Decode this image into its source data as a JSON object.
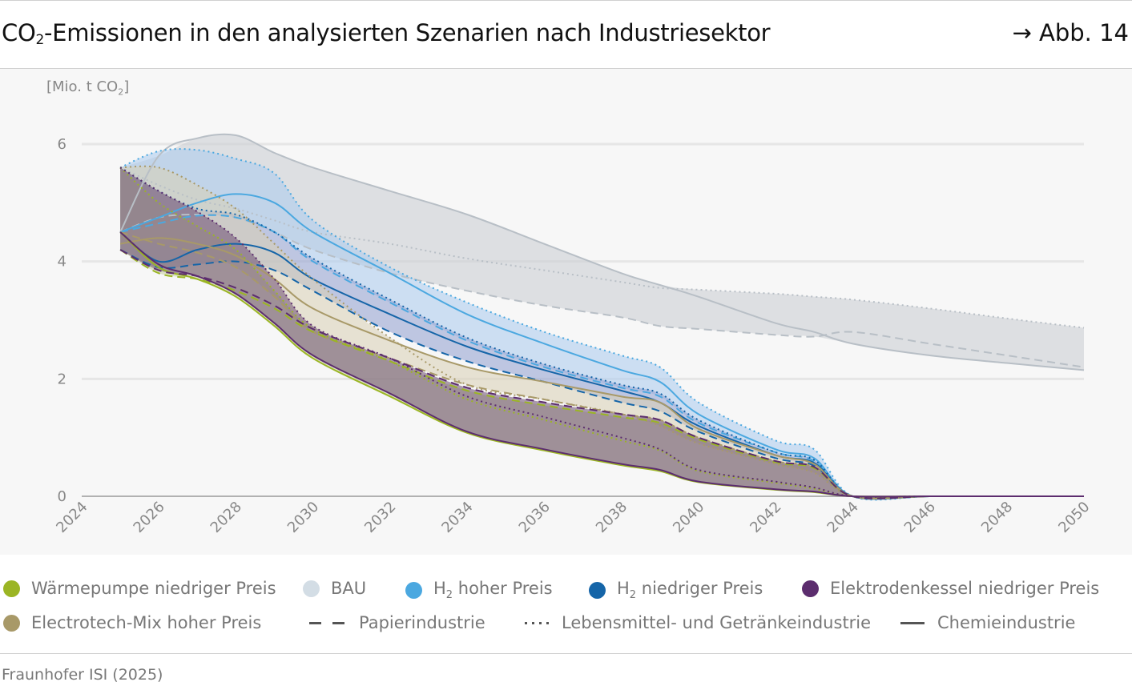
{
  "header": {
    "title_prefix": "CO",
    "title_sub": "2",
    "title_rest": "-Emissionen in den analysierten Szenarien nach Industriesektor",
    "figure_ref": "→ Abb. 14"
  },
  "footer": {
    "source": "Fraunhofer ISI (2025)"
  },
  "chart_data": {
    "type": "line",
    "ylabel_prefix": "[Mio. t CO",
    "ylabel_sub": "2",
    "ylabel_suffix": "]",
    "xlim": [
      2024,
      2050
    ],
    "ylim": [
      0,
      6
    ],
    "x_ticks": [
      "2024",
      "2026",
      "2028",
      "2030",
      "2032",
      "2034",
      "2036",
      "2038",
      "2040",
      "2042",
      "2044",
      "2046",
      "2048",
      "2050"
    ],
    "y_ticks": [
      "0",
      "2",
      "4",
      "6"
    ],
    "grid": true,
    "legend_position": "bottom",
    "x": [
      2025,
      2026,
      2027,
      2028,
      2029,
      2030,
      2032,
      2034,
      2036,
      2038,
      2039,
      2040,
      2042,
      2043,
      2044,
      2046,
      2048,
      2050
    ],
    "scenarios": [
      {
        "name": "BAU",
        "color": "#b8bfc6",
        "fill": "#c9ccd2",
        "sectors": {
          "Chemieindustrie": [
            4.5,
            5.8,
            6.1,
            6.15,
            5.85,
            5.6,
            5.2,
            4.8,
            4.3,
            3.8,
            3.6,
            3.4,
            2.95,
            2.8,
            2.6,
            2.4,
            2.27,
            2.15
          ],
          "Lebensmittel- und Getränkeindustrie": [
            5.6,
            5.3,
            5.05,
            4.9,
            4.7,
            4.5,
            4.3,
            4.05,
            3.85,
            3.65,
            3.55,
            3.52,
            3.45,
            3.4,
            3.35,
            3.2,
            3.03,
            2.87
          ],
          "Papierindustrie": [
            4.5,
            4.75,
            4.8,
            4.75,
            4.5,
            4.2,
            3.8,
            3.5,
            3.25,
            3.05,
            2.9,
            2.85,
            2.75,
            2.72,
            2.8,
            2.6,
            2.4,
            2.2
          ]
        }
      },
      {
        "name": "H2 hoher Preis",
        "color": "#4ba8e0",
        "fill": "#a9cbee",
        "sectors": {
          "Chemieindustrie": [
            4.5,
            4.75,
            5.0,
            5.15,
            5.0,
            4.5,
            3.8,
            3.1,
            2.6,
            2.15,
            1.95,
            1.4,
            0.8,
            0.65,
            0,
            0,
            0,
            0
          ],
          "Lebensmittel- und Getränkeindustrie": [
            5.6,
            5.88,
            5.9,
            5.75,
            5.5,
            4.7,
            3.9,
            3.3,
            2.8,
            2.4,
            2.2,
            1.6,
            0.95,
            0.8,
            0,
            0,
            0,
            0
          ],
          "Papierindustrie": [
            4.5,
            4.65,
            4.78,
            4.75,
            4.5,
            4.0,
            3.3,
            2.65,
            2.2,
            1.85,
            1.7,
            1.25,
            0.75,
            0.6,
            0,
            0,
            0,
            0
          ]
        }
      },
      {
        "name": "H2 niedriger Preis",
        "color": "#1565a8",
        "fill": "#8f9fd0",
        "sectors": {
          "Chemieindustrie": [
            4.5,
            4.0,
            4.2,
            4.3,
            4.15,
            3.7,
            3.1,
            2.55,
            2.15,
            1.8,
            1.6,
            1.2,
            0.7,
            0.57,
            0,
            0,
            0,
            0
          ],
          "Lebensmittel- und Getränkeindustrie": [
            5.6,
            5.2,
            4.9,
            4.8,
            4.5,
            4.05,
            3.35,
            2.7,
            2.25,
            1.9,
            1.75,
            1.3,
            0.75,
            0.62,
            0,
            0,
            0,
            0
          ],
          "Papierindustrie": [
            4.2,
            3.9,
            3.95,
            4.0,
            3.85,
            3.5,
            2.8,
            2.3,
            1.95,
            1.6,
            1.45,
            1.1,
            0.65,
            0.52,
            0,
            0,
            0,
            0
          ]
        }
      },
      {
        "name": "Electrotech-Mix hoher Preis",
        "color": "#a89968",
        "fill": "#d9d0b4",
        "sectors": {
          "Chemieindustrie": [
            4.3,
            4.4,
            4.3,
            4.1,
            3.7,
            3.2,
            2.65,
            2.2,
            1.95,
            1.7,
            1.6,
            1.15,
            0.7,
            0.55,
            0,
            0,
            0,
            0
          ],
          "Lebensmittel- und Getränkeindustrie": [
            5.6,
            5.6,
            5.3,
            4.9,
            4.3,
            3.7,
            2.7,
            1.9,
            1.65,
            1.4,
            1.2,
            0.9,
            0.55,
            0.4,
            0,
            0,
            0,
            0
          ],
          "Papierindustrie": [
            4.5,
            4.3,
            4.15,
            3.9,
            3.4,
            2.8,
            2.35,
            1.9,
            1.65,
            1.4,
            1.3,
            1.0,
            0.6,
            0.5,
            0,
            0,
            0,
            0
          ]
        }
      },
      {
        "name": "Wärmepumpe niedriger Preis",
        "color": "#9bb524",
        "fill": "#c7cf9c",
        "sectors": {
          "Chemieindustrie": [
            4.5,
            3.9,
            3.7,
            3.4,
            2.9,
            2.35,
            1.7,
            1.08,
            0.78,
            0.53,
            0.43,
            0.24,
            0.11,
            0.07,
            0,
            0,
            0,
            0
          ],
          "Lebensmittel- und Getränkeindustrie": [
            5.6,
            5.0,
            4.6,
            4.2,
            3.5,
            2.85,
            2.3,
            1.65,
            1.3,
            0.95,
            0.78,
            0.43,
            0.23,
            0.13,
            0,
            0,
            0,
            0
          ],
          "Papierindustrie": [
            4.2,
            3.8,
            3.7,
            3.5,
            3.2,
            2.8,
            2.3,
            1.8,
            1.55,
            1.35,
            1.25,
            0.97,
            0.58,
            0.48,
            0,
            0,
            0,
            0
          ]
        }
      },
      {
        "name": "Elektrodenkessel niedriger Preis",
        "color": "#5c2d6e",
        "fill": "#6e4f72",
        "sectors": {
          "Chemieindustrie": [
            4.5,
            3.95,
            3.75,
            3.45,
            2.95,
            2.4,
            1.75,
            1.1,
            0.8,
            0.55,
            0.45,
            0.25,
            0.12,
            0.08,
            0,
            0,
            0,
            0
          ],
          "Lebensmittel- und Getränkeindustrie": [
            5.6,
            5.2,
            4.85,
            4.4,
            3.7,
            2.9,
            2.35,
            1.7,
            1.35,
            1.0,
            0.8,
            0.45,
            0.25,
            0.15,
            0,
            0,
            0,
            0
          ],
          "Papierindustrie": [
            4.2,
            3.85,
            3.75,
            3.55,
            3.25,
            2.85,
            2.35,
            1.85,
            1.6,
            1.4,
            1.3,
            1.0,
            0.6,
            0.5,
            0,
            0,
            0,
            0
          ]
        }
      }
    ],
    "sector_styles": {
      "Papierindustrie": "dashed",
      "Lebensmittel- und Getränkeindustrie": "dotted",
      "Chemieindustrie": "solid"
    }
  },
  "legend": {
    "scenarios": [
      {
        "label": "Wärmepumpe niedriger Preis",
        "color": "#9bb524"
      },
      {
        "label": "BAU",
        "color": "#d3dde5"
      },
      {
        "label_pre": "H",
        "label_sub": "2",
        "label_post": " hoher Preis",
        "color": "#4ba8e0"
      },
      {
        "label_pre": "H",
        "label_sub": "2",
        "label_post": " niedriger Preis",
        "color": "#1565a8"
      },
      {
        "label": "Elektrodenkessel niedriger Preis",
        "color": "#5c2d6e"
      },
      {
        "label": "Electrotech-Mix hoher Preis",
        "color": "#a89968"
      }
    ],
    "sectors": [
      {
        "label": "Papierindustrie",
        "style": "dashed"
      },
      {
        "label": "Lebensmittel- und Getränkeindustrie",
        "style": "dotted"
      },
      {
        "label": "Chemieindustrie",
        "style": "solid"
      }
    ]
  }
}
